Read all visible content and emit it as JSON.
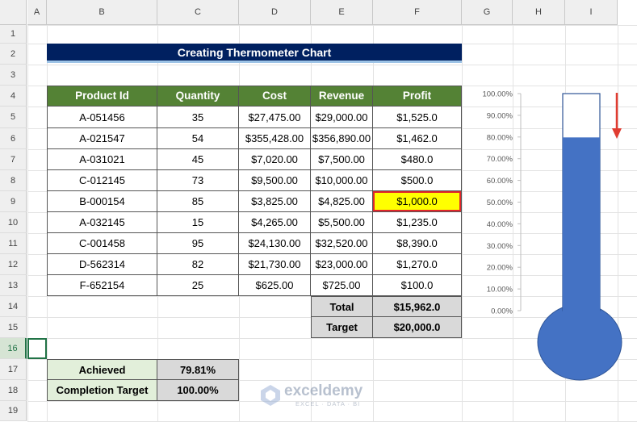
{
  "columns": [
    "A",
    "B",
    "C",
    "D",
    "E",
    "F",
    "G",
    "H",
    "I"
  ],
  "rows": [
    "1",
    "2",
    "3",
    "4",
    "5",
    "6",
    "7",
    "8",
    "9",
    "10",
    "11",
    "12",
    "13",
    "14",
    "15",
    "16",
    "17",
    "18",
    "19"
  ],
  "title": "Creating Thermometer Chart",
  "table": {
    "headers": [
      "Product Id",
      "Quantity",
      "Cost",
      "Revenue",
      "Profit"
    ],
    "rows": [
      [
        "A-051456",
        "35",
        "$27,475.00",
        "$29,000.00",
        "$1,525.0"
      ],
      [
        "A-021547",
        "54",
        "$355,428.00",
        "$356,890.00",
        "$1,462.0"
      ],
      [
        "A-031021",
        "45",
        "$7,020.00",
        "$7,500.00",
        "$480.0"
      ],
      [
        "C-012145",
        "73",
        "$9,500.00",
        "$10,000.00",
        "$500.0"
      ],
      [
        "B-000154",
        "85",
        "$3,825.00",
        "$4,825.00",
        "$1,000.0"
      ],
      [
        "A-032145",
        "15",
        "$4,265.00",
        "$5,500.00",
        "$1,235.0"
      ],
      [
        "C-001458",
        "95",
        "$24,130.00",
        "$32,520.00",
        "$8,390.0"
      ],
      [
        "D-562314",
        "82",
        "$21,730.00",
        "$23,000.00",
        "$1,270.0"
      ],
      [
        "F-652154",
        "25",
        "$625.00",
        "$725.00",
        "$100.0"
      ]
    ],
    "highlighted_cell": "B-000154 Profit"
  },
  "totals": {
    "total_label": "Total",
    "total_value": "$15,962.0",
    "target_label": "Target",
    "target_value": "$20,000.0"
  },
  "summary": {
    "achieved_label": "Achieved",
    "achieved_value": "79.81%",
    "completion_label": "Completion Target",
    "completion_value": "100.00%"
  },
  "chart_data": {
    "type": "bar",
    "categories": [
      ""
    ],
    "values": [
      79.81
    ],
    "ylim": [
      0,
      100
    ],
    "yticks": [
      "0.00%",
      "10.00%",
      "20.00%",
      "30.00%",
      "40.00%",
      "50.00%",
      "60.00%",
      "70.00%",
      "80.00%",
      "90.00%",
      "100.00%"
    ],
    "fill_color": "#4472c4",
    "outline_color": "#2f5597",
    "arrow_color": "#e03c31"
  },
  "watermark": {
    "name": "exceldemy",
    "tagline": "EXCEL · DATA · BI"
  },
  "colors": {
    "header_green": "#548235",
    "title_navy": "#002060",
    "highlight_yellow": "#ffff00",
    "highlight_border": "#e0262b"
  }
}
